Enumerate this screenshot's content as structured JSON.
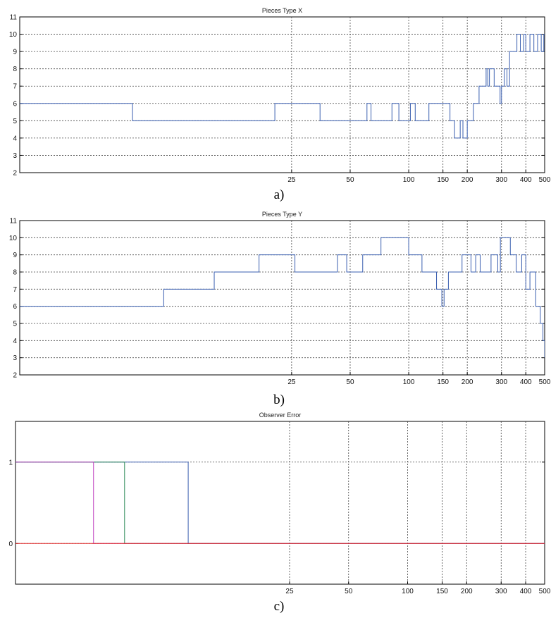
{
  "captions": [
    "a)",
    "b)",
    "c)"
  ],
  "chart_data": [
    {
      "type": "line",
      "style": "step",
      "title": "Pieces Type X",
      "xscale": "log",
      "xlim": [
        1,
        500
      ],
      "ylim": [
        2,
        11
      ],
      "grid": true,
      "x_ticks": [
        25,
        50,
        100,
        150,
        200,
        300,
        400,
        500
      ],
      "y_ticks": [
        2,
        3,
        4,
        5,
        6,
        7,
        8,
        9,
        10,
        11
      ],
      "color": "#3a5fb0",
      "series": [
        {
          "x": [
            1,
            3.8,
            20.5,
            35,
            61,
            64,
            82,
            89,
            102,
            108,
            127,
            131,
            163,
            172,
            184,
            190,
            200,
            215,
            230,
            250,
            255,
            260,
            275,
            295,
            300,
            310,
            320,
            330,
            345,
            360,
            375,
            390,
            400,
            420,
            440,
            460,
            480,
            495,
            500
          ],
          "y": [
            6,
            5,
            6,
            5,
            6,
            5,
            6,
            5,
            6,
            5,
            6,
            6,
            5,
            4,
            5,
            4,
            5,
            6,
            7,
            8,
            7,
            8,
            7,
            6,
            7,
            8,
            7,
            9,
            9,
            10,
            9,
            10,
            9,
            10,
            9,
            10,
            9,
            10,
            10
          ]
        }
      ]
    },
    {
      "type": "line",
      "style": "step",
      "title": "Pieces Type Y",
      "xscale": "log",
      "xlim": [
        1,
        500
      ],
      "ylim": [
        2,
        11
      ],
      "grid": true,
      "x_ticks": [
        25,
        50,
        100,
        150,
        200,
        300,
        400,
        500
      ],
      "y_ticks": [
        2,
        3,
        4,
        5,
        6,
        7,
        8,
        9,
        10,
        11
      ],
      "color": "#3a5fb0",
      "series": [
        {
          "x": [
            1,
            5.5,
            10,
            17,
            26,
            43,
            48,
            58,
            72,
            100,
            117,
            139,
            148,
            152,
            160,
            188,
            209,
            221,
            233,
            265,
            287,
            296,
            333,
            357,
            381,
            400,
            420,
            450,
            475,
            490,
            500
          ],
          "y": [
            6,
            7,
            8,
            9,
            8,
            9,
            8,
            9,
            10,
            9,
            8,
            7,
            6,
            7,
            8,
            9,
            8,
            9,
            8,
            9,
            8,
            10,
            9,
            8,
            9,
            7,
            8,
            6,
            5,
            4,
            3
          ]
        }
      ]
    },
    {
      "type": "line",
      "style": "step",
      "title": "Observer Error",
      "xscale": "log",
      "xlim": [
        1,
        500
      ],
      "ylim": [
        -0.5,
        1.5
      ],
      "grid": true,
      "x_ticks": [
        25,
        50,
        100,
        150,
        200,
        300,
        400,
        500
      ],
      "y_ticks": [
        0,
        1
      ],
      "series": [
        {
          "color": "#3a5fb0",
          "x": [
            1,
            7.6,
            7.6,
            500
          ],
          "y": [
            1,
            1,
            0,
            0
          ]
        },
        {
          "color": "#2e8b57",
          "x": [
            1,
            3.6,
            3.6,
            500
          ],
          "y": [
            1,
            1,
            0,
            0
          ]
        },
        {
          "color": "#c040c0",
          "x": [
            1,
            2.5,
            2.5,
            500
          ],
          "y": [
            1,
            1,
            0,
            0
          ]
        },
        {
          "color": "#e02020",
          "x": [
            1,
            500
          ],
          "y": [
            0,
            0
          ]
        }
      ]
    }
  ]
}
